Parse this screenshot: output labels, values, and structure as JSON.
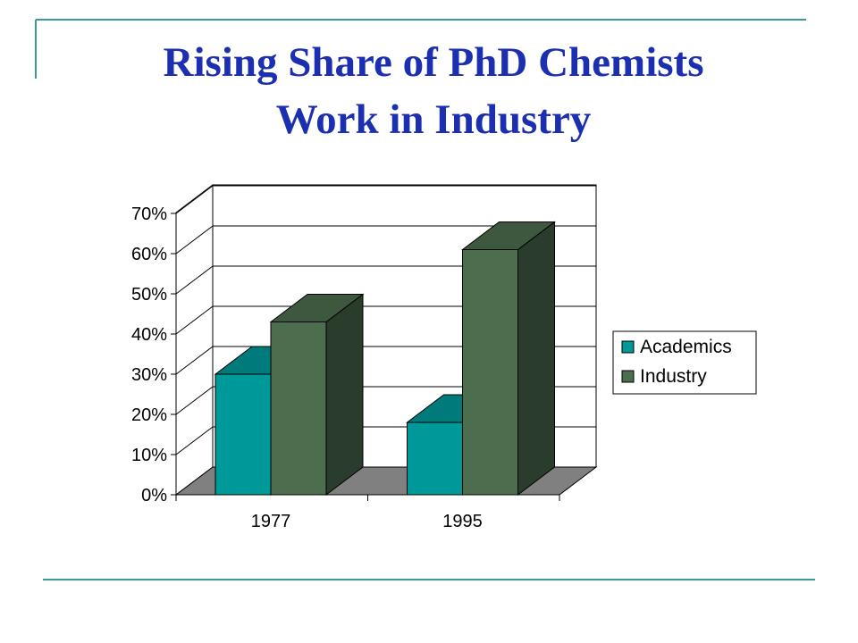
{
  "title": {
    "line1": "Rising Share of PhD Chemists",
    "line2": "Work in Industry"
  },
  "colors": {
    "title": "#1b2fb0",
    "rule": "#3b9a9a",
    "academics": "#009999",
    "industry": "#4d6d4f"
  },
  "chart_data": {
    "type": "bar",
    "style": "3d-clustered",
    "categories": [
      "1977",
      "1995"
    ],
    "series": [
      {
        "name": "Academics",
        "values": [
          30,
          18
        ]
      },
      {
        "name": "Industry",
        "values": [
          43,
          61
        ]
      }
    ],
    "yunit": "%",
    "ylim": [
      0,
      70
    ],
    "yticks": [
      "0%",
      "10%",
      "20%",
      "30%",
      "40%",
      "50%",
      "60%",
      "70%"
    ],
    "grid": true,
    "legend": "right"
  }
}
